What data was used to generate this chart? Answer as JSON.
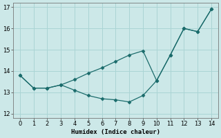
{
  "line1_x": [
    0,
    1,
    2,
    3,
    4,
    5,
    6,
    7,
    8,
    9,
    10,
    11,
    12,
    13,
    14
  ],
  "line1_y": [
    13.8,
    13.2,
    13.2,
    13.35,
    13.6,
    13.9,
    14.15,
    14.45,
    14.75,
    14.95,
    13.55,
    14.75,
    16.0,
    15.85,
    16.9
  ],
  "line2_x": [
    0,
    1,
    2,
    3,
    4,
    5,
    6,
    7,
    8,
    9,
    10,
    11,
    12,
    13,
    14
  ],
  "line2_y": [
    13.8,
    13.2,
    13.2,
    13.35,
    13.1,
    12.85,
    12.7,
    12.65,
    12.55,
    12.85,
    13.55,
    14.75,
    16.0,
    15.85,
    16.9
  ],
  "xlabel": "Humidex (Indice chaleur)",
  "xlim": [
    -0.5,
    14.5
  ],
  "ylim": [
    11.8,
    17.2
  ],
  "yticks": [
    12,
    13,
    14,
    15,
    16,
    17
  ],
  "xticks": [
    0,
    1,
    2,
    3,
    4,
    5,
    6,
    7,
    8,
    9,
    10,
    11,
    12,
    13,
    14
  ],
  "line_color": "#1a6b6b",
  "marker": "D",
  "marker_size": 2.5,
  "bg_color": "#cce8e8",
  "grid_color": "#aad4d4",
  "figsize": [
    3.2,
    2.0
  ],
  "dpi": 100
}
